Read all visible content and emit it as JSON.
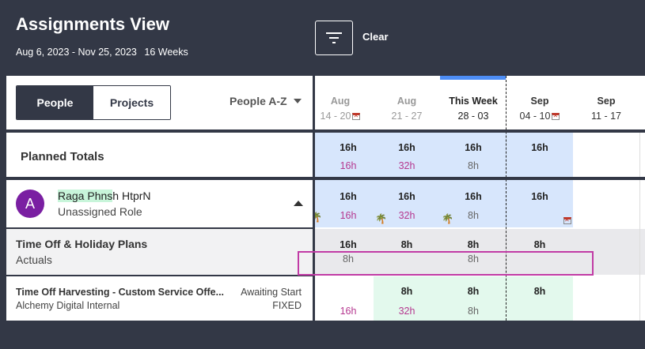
{
  "header": {
    "title": "Assignments View",
    "date_range": "Aug 6, 2023 - Nov 25, 2023",
    "weeks": "16 Weeks",
    "clear_label": "Clear"
  },
  "toolbar": {
    "people_label": "People",
    "projects_label": "Projects",
    "sort_label": "People A-Z"
  },
  "weeks": [
    {
      "month": "Aug",
      "range": "14 - 20",
      "holiday": true
    },
    {
      "month": "Aug",
      "range": "21 - 27",
      "holiday": false
    },
    {
      "month": "This Week",
      "range": "28 - 03",
      "holiday": false
    },
    {
      "month": "Sep",
      "range": "04 - 10",
      "holiday": true
    },
    {
      "month": "Sep",
      "range": "11 - 17",
      "holiday": false
    }
  ],
  "planned_totals": {
    "label": "Planned Totals",
    "cells": [
      {
        "top": "16h",
        "bot": "16h"
      },
      {
        "top": "16h",
        "bot": "32h"
      },
      {
        "top": "16h",
        "bot": "8h"
      },
      {
        "top": "16h",
        "bot": ""
      }
    ]
  },
  "person": {
    "initial": "A",
    "name_highlight": "Raga Phns",
    "name_rest": "h HtprN",
    "role": "Unassigned Role",
    "cells": [
      {
        "top": "16h",
        "bot": "16h"
      },
      {
        "top": "16h",
        "bot": "32h"
      },
      {
        "top": "16h",
        "bot": "8h"
      },
      {
        "top": "16h",
        "bot": ""
      }
    ]
  },
  "time_off": {
    "title": "Time Off & Holiday Plans",
    "subtitle": "Actuals",
    "cells": [
      {
        "top": "16h",
        "bot": "8h"
      },
      {
        "top": "8h",
        "bot": ""
      },
      {
        "top": "8h",
        "bot": "8h"
      },
      {
        "top": "8h",
        "bot": ""
      }
    ]
  },
  "project": {
    "title": "Time Off Harvesting - Custom Service Offe...",
    "client": "Alchemy Digital Internal",
    "status": "Awaiting Start",
    "type": "FIXED",
    "cells": [
      {
        "top": "",
        "bot": "16h"
      },
      {
        "top": "8h",
        "bot": "32h"
      },
      {
        "top": "8h",
        "bot": "8h"
      },
      {
        "top": "8h",
        "bot": ""
      }
    ]
  },
  "colors": {
    "background": "#333846",
    "planned_bg": "#d7e6fc",
    "project_bg": "#e3f9ed",
    "pink_text": "#b5378f",
    "highlight_border": "#c13ba5",
    "today_bar": "#4d8df5"
  }
}
